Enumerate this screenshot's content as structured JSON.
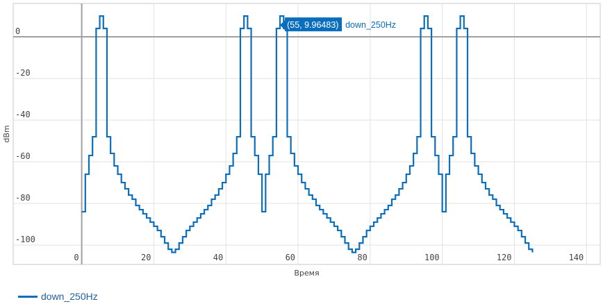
{
  "chart_data": {
    "type": "line",
    "line_shape": "step",
    "xlabel": "Время",
    "ylabel": "dBm",
    "xlim": [
      -19,
      143.8
    ],
    "ylim": [
      -109.3,
      16
    ],
    "x_ticks": [
      0,
      20,
      40,
      60,
      80,
      100,
      120,
      140
    ],
    "y_ticks": [
      0,
      -20,
      -40,
      -60,
      -80,
      -100
    ],
    "grid": true,
    "legend_position": "bottom-left",
    "series": [
      {
        "name": "down_250Hz",
        "color": "#0a6ebd",
        "x_start": 0,
        "x_step": 1,
        "values": [
          -84,
          -66,
          -57,
          -48,
          4,
          9.96483,
          4,
          -48,
          -56,
          -62,
          -66,
          -70,
          -73,
          -76,
          -78,
          -81,
          -83,
          -85,
          -87,
          -89,
          -91,
          -93,
          -96,
          -99,
          -102,
          -103.5,
          -102,
          -99,
          -96,
          -93,
          -91,
          -89,
          -87,
          -85,
          -83,
          -81,
          -78,
          -76,
          -73,
          -70,
          -66,
          -62,
          -56,
          -48,
          4,
          9.96483,
          4,
          -48,
          -57,
          -66,
          -84,
          -66,
          -57,
          -48,
          4,
          9.96483,
          4,
          -48,
          -56,
          -62,
          -66,
          -70,
          -73,
          -76,
          -78,
          -81,
          -83,
          -85,
          -87,
          -89,
          -91,
          -93,
          -96,
          -99,
          -102,
          -103.5,
          -102,
          -99,
          -96,
          -93,
          -91,
          -89,
          -87,
          -85,
          -83,
          -81,
          -78,
          -76,
          -73,
          -70,
          -66,
          -62,
          -56,
          -48,
          4,
          9.96483,
          4,
          -48,
          -57,
          -66,
          -84,
          -66,
          -57,
          -48,
          4,
          9.96483,
          4,
          -48,
          -56,
          -62,
          -66,
          -70,
          -73,
          -76,
          -78,
          -81,
          -83,
          -85,
          -87,
          -89,
          -91,
          -93,
          -96,
          -99,
          -102,
          -103.5
        ]
      }
    ],
    "hover": {
      "x": 55,
      "y": 9.96483,
      "label": "(55, 9.96483)",
      "series": "down_250Hz"
    }
  },
  "legend": {
    "label": "down_250Hz"
  }
}
